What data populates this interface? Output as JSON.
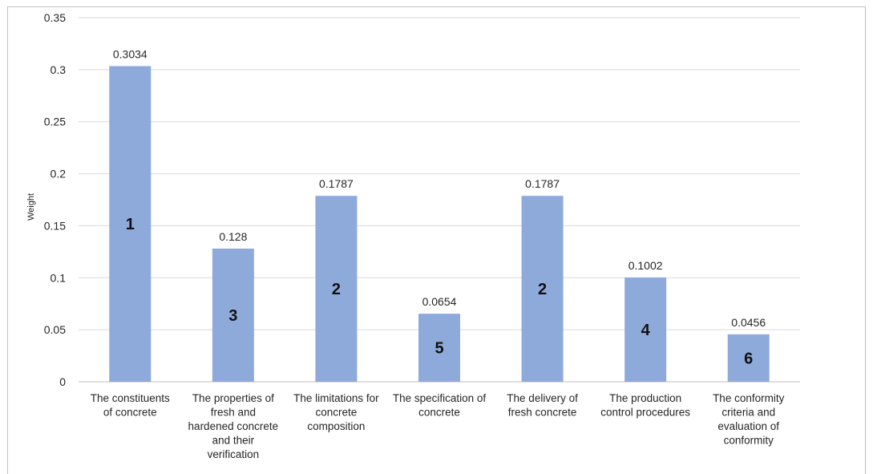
{
  "chart_data": {
    "type": "bar",
    "title": "",
    "xlabel": "",
    "ylabel": "Weight",
    "ylim": [
      0,
      0.35
    ],
    "yticks": [
      "0",
      "0.05",
      "0.1",
      "0.15",
      "0.2",
      "0.25",
      "0.3",
      "0.35"
    ],
    "categories": [
      "The constituents of concrete",
      "The properties of fresh and hardened concrete and their verification",
      "The limitations for concrete composition",
      "The specification of concrete",
      "The delivery of fresh concrete",
      "The production control procedures",
      "The conformity criteria and evaluation of conformity"
    ],
    "category_lines": [
      [
        "The constituents",
        "of concrete"
      ],
      [
        "The properties of",
        "fresh and",
        "hardened concrete",
        "and their",
        "verification"
      ],
      [
        "The limitations for",
        "concrete",
        "composition"
      ],
      [
        "The specification of",
        "concrete"
      ],
      [
        "The delivery of",
        "fresh concrete"
      ],
      [
        "The production",
        "control procedures"
      ],
      [
        "The conformity",
        "criteria and",
        "evaluation of",
        "conformity"
      ]
    ],
    "values": [
      0.3034,
      0.128,
      0.1787,
      0.0654,
      0.1787,
      0.1002,
      0.0456
    ],
    "data_labels": [
      "0.3034",
      "0.128",
      "0.1787",
      "0.0654",
      "0.1787",
      "0.1002",
      "0.0456"
    ],
    "ranks": [
      "1",
      "3",
      "2",
      "5",
      "2",
      "4",
      "6"
    ],
    "grid": true,
    "legend": "none",
    "colors": {
      "bar": "#8eaadb",
      "grid": "#d9d9d9",
      "axis": "#bfbfbf",
      "text": "#262626"
    }
  }
}
